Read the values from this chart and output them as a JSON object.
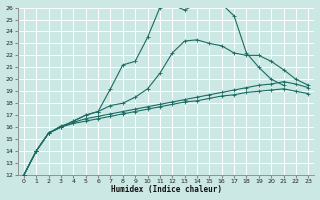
{
  "xlabel": "Humidex (Indice chaleur)",
  "bg_color": "#cce8e4",
  "grid_color": "#ffffff",
  "line_color": "#1a6b62",
  "xlim": [
    -0.5,
    23.5
  ],
  "ylim": [
    12,
    26
  ],
  "xticks": [
    0,
    1,
    2,
    3,
    4,
    5,
    6,
    7,
    8,
    9,
    10,
    11,
    12,
    13,
    14,
    15,
    16,
    17,
    18,
    19,
    20,
    21,
    22,
    23
  ],
  "yticks": [
    12,
    13,
    14,
    15,
    16,
    17,
    18,
    19,
    20,
    21,
    22,
    23,
    24,
    25,
    26
  ],
  "series": {
    "high_peak": {
      "x": [
        0,
        1,
        2,
        3,
        4,
        5,
        6,
        7,
        8,
        9,
        10,
        11,
        12,
        13,
        14,
        15,
        16,
        17,
        18,
        19,
        20,
        21
      ],
      "y": [
        12,
        14,
        15.5,
        16.0,
        16.5,
        17.0,
        17.3,
        19.2,
        21.2,
        21.5,
        23.5,
        26.0,
        26.2,
        25.8,
        26.3,
        26.5,
        26.3,
        25.3,
        22.2,
        21.0,
        20.0,
        19.5
      ]
    },
    "mid_peak": {
      "x": [
        0,
        1,
        2,
        3,
        4,
        5,
        6,
        7,
        8,
        9,
        10,
        11,
        12,
        13,
        14,
        15,
        16,
        17,
        18,
        19,
        20,
        21,
        22,
        23
      ],
      "y": [
        12,
        14,
        15.5,
        16.0,
        16.5,
        17.0,
        17.3,
        17.8,
        18.0,
        18.5,
        19.2,
        20.5,
        22.2,
        23.2,
        23.3,
        23.0,
        22.8,
        22.2,
        22.0,
        22.0,
        21.5,
        20.8,
        20.0,
        19.5
      ]
    },
    "low1": {
      "x": [
        0,
        1,
        2,
        3,
        4,
        5,
        6,
        7,
        8,
        9,
        10,
        11,
        12,
        13,
        14,
        15,
        16,
        17,
        18,
        19,
        20,
        21,
        22,
        23
      ],
      "y": [
        12,
        14,
        15.5,
        16.1,
        16.4,
        16.7,
        16.9,
        17.1,
        17.3,
        17.5,
        17.7,
        17.9,
        18.1,
        18.3,
        18.5,
        18.7,
        18.9,
        19.1,
        19.3,
        19.5,
        19.6,
        19.8,
        19.6,
        19.3
      ]
    },
    "low2": {
      "x": [
        0,
        1,
        2,
        3,
        4,
        5,
        6,
        7,
        8,
        9,
        10,
        11,
        12,
        13,
        14,
        15,
        16,
        17,
        18,
        19,
        20,
        21,
        22,
        23
      ],
      "y": [
        12,
        14,
        15.5,
        16.0,
        16.3,
        16.5,
        16.7,
        16.9,
        17.1,
        17.3,
        17.5,
        17.7,
        17.9,
        18.1,
        18.2,
        18.4,
        18.6,
        18.7,
        18.9,
        19.0,
        19.1,
        19.2,
        19.0,
        18.8
      ]
    }
  }
}
